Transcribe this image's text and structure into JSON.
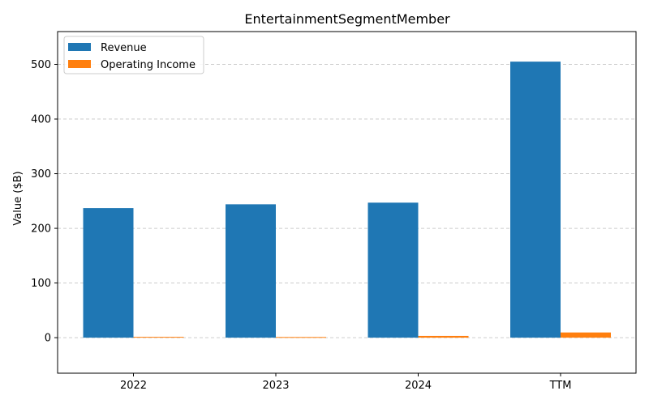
{
  "chart_data": {
    "type": "bar",
    "title": "EntertainmentSegmentMember",
    "xlabel": "",
    "ylabel": "Value ($B)",
    "categories": [
      "2022",
      "2023",
      "2024",
      "TTM"
    ],
    "series": [
      {
        "name": "Revenue",
        "color": "#1f77b4",
        "values": [
          237,
          244,
          247,
          505
        ]
      },
      {
        "name": "Operating Income",
        "color": "#ff7f0e",
        "values": [
          1.5,
          1.2,
          3.2,
          9.5
        ]
      }
    ],
    "ylim": [
      -65,
      560
    ],
    "yticks": [
      0,
      100,
      200,
      300,
      400,
      500
    ],
    "grid": "y-dashed",
    "legend": "top-left"
  }
}
